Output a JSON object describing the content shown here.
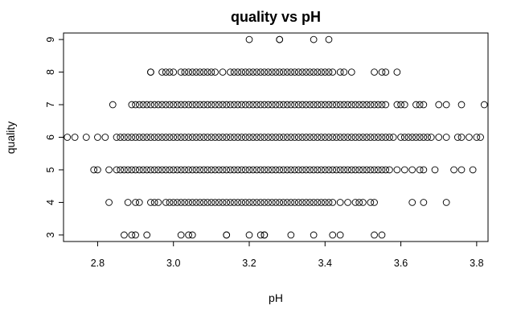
{
  "chart_data": {
    "type": "scatter",
    "title": "quality vs pH",
    "xlabel": "pH",
    "ylabel": "quality",
    "xlim": [
      2.71,
      3.83
    ],
    "ylim": [
      2.8,
      9.2
    ],
    "x_ticks": [
      2.8,
      3.0,
      3.2,
      3.4,
      3.6,
      3.8
    ],
    "x_tick_labels": [
      "2.8",
      "3.0",
      "3.2",
      "3.4",
      "3.6",
      "3.8"
    ],
    "y_ticks": [
      3,
      4,
      5,
      6,
      7,
      8,
      9
    ],
    "y_tick_labels": [
      "3",
      "4",
      "5",
      "6",
      "7",
      "8",
      "9"
    ],
    "grid": false,
    "legend": "none",
    "marker": "open-circle",
    "point_groups": [
      {
        "y": 9,
        "x": [
          3.2,
          3.28,
          3.28,
          3.37,
          3.41
        ]
      },
      {
        "y": 3,
        "x": [
          2.87,
          2.89,
          2.9,
          2.93,
          3.02,
          3.04,
          3.05,
          3.14,
          3.14,
          3.2,
          3.23,
          3.24,
          3.24,
          3.31,
          3.37,
          3.42,
          3.44,
          3.53,
          3.55
        ]
      },
      {
        "y": 4,
        "dense_ranges": [
          [
            2.99,
            3.42
          ]
        ],
        "step": 0.01,
        "x": [
          2.83,
          2.88,
          2.9,
          2.91,
          2.94,
          2.95,
          2.96,
          2.98,
          3.44,
          3.46,
          3.48,
          3.49,
          3.5,
          3.52,
          3.53,
          3.63,
          3.66,
          3.72
        ]
      },
      {
        "y": 5,
        "dense_ranges": [
          [
            2.88,
            3.53
          ]
        ],
        "step": 0.01,
        "x": [
          2.79,
          2.8,
          2.83,
          2.85,
          2.86,
          2.87,
          3.54,
          3.55,
          3.56,
          3.57,
          3.59,
          3.61,
          3.63,
          3.65,
          3.66,
          3.69,
          3.74,
          3.76,
          3.79
        ]
      },
      {
        "y": 6,
        "dense_ranges": [
          [
            2.85,
            3.58
          ]
        ],
        "step": 0.01,
        "x": [
          2.72,
          2.74,
          2.77,
          2.8,
          2.82,
          3.6,
          3.61,
          3.62,
          3.63,
          3.64,
          3.65,
          3.66,
          3.67,
          3.68,
          3.7,
          3.72,
          3.75,
          3.76,
          3.78,
          3.8,
          3.81
        ]
      },
      {
        "y": 7,
        "dense_ranges": [
          [
            2.89,
            3.55
          ]
        ],
        "step": 0.01,
        "x": [
          2.84,
          3.56,
          3.59,
          3.6,
          3.61,
          3.64,
          3.65,
          3.66,
          3.7,
          3.72,
          3.76,
          3.82
        ]
      },
      {
        "y": 8,
        "dense_ranges": [
          [
            3.15,
            3.42
          ]
        ],
        "step": 0.01,
        "x": [
          2.94,
          2.94,
          2.97,
          2.98,
          2.99,
          3.0,
          3.02,
          3.03,
          3.04,
          3.05,
          3.06,
          3.07,
          3.08,
          3.09,
          3.1,
          3.11,
          3.13,
          3.44,
          3.45,
          3.47,
          3.53,
          3.55,
          3.56,
          3.59
        ]
      }
    ]
  }
}
